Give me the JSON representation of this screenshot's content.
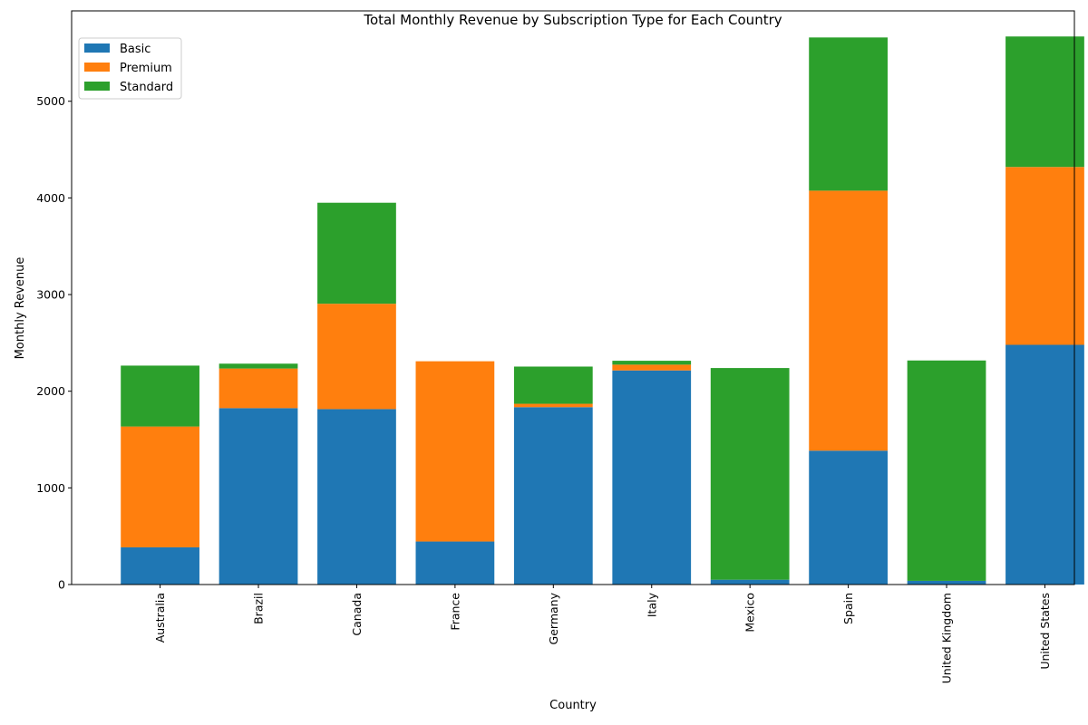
{
  "chart_data": {
    "type": "bar",
    "stacked": true,
    "title": "Total Monthly Revenue by Subscription Type for Each Country",
    "xlabel": "Country",
    "ylabel": "Monthly Revenue",
    "categories": [
      "Australia",
      "Brazil",
      "Canada",
      "France",
      "Germany",
      "Italy",
      "Mexico",
      "Spain",
      "United Kingdom",
      "United States"
    ],
    "series": [
      {
        "name": "Basic",
        "color": "#1f77b4",
        "values": [
          385,
          1825,
          1815,
          445,
          1835,
          2215,
          50,
          1385,
          38,
          2480
        ]
      },
      {
        "name": "Premium",
        "color": "#ff7f0e",
        "values": [
          1250,
          410,
          1090,
          1865,
          35,
          60,
          0,
          2690,
          0,
          1840
        ]
      },
      {
        "name": "Standard",
        "color": "#2ca02c",
        "values": [
          630,
          50,
          1045,
          0,
          385,
          40,
          2190,
          1585,
          2280,
          1350
        ]
      }
    ],
    "ylim": [
      0,
      5935
    ],
    "yticks": [
      0,
      1000,
      2000,
      3000,
      4000,
      5000
    ],
    "grid": false,
    "legend_position": "upper-left"
  }
}
